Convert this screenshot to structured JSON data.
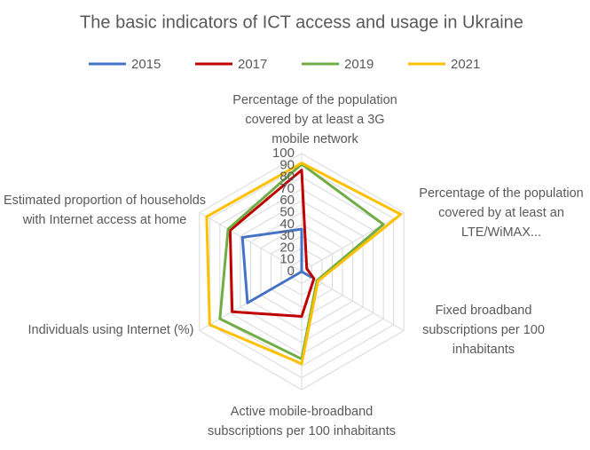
{
  "chart_data": {
    "type": "radar",
    "title": "The basic indicators of ICT access and usage in Ukraine",
    "categories": [
      "Percentage of the population covered by at least a 3G mobile network",
      "Percentage of the population covered by at least an LTE/WiMAX...",
      "Fixed broadband subscriptions per 100 inhabitants",
      "Active mobile-broadband subscriptions per 100 inhabitants",
      "Individuals using Internet (%)",
      "Estimated proportion of households with Internet access at home"
    ],
    "series": [
      {
        "name": "2015",
        "color": "#4472c4",
        "values": [
          36,
          0,
          9,
          0,
          53,
          58
        ]
      },
      {
        "name": "2017",
        "color": "#c00000",
        "values": [
          86,
          5,
          12,
          38,
          68,
          70
        ]
      },
      {
        "name": "2019",
        "color": "#70ad47",
        "values": [
          91,
          80,
          15,
          74,
          80,
          72
        ]
      },
      {
        "name": "2021",
        "color": "#ffc000",
        "values": [
          92,
          97,
          16,
          78,
          90,
          93
        ]
      }
    ],
    "rlim": [
      0,
      100
    ],
    "rticks": [
      0,
      10,
      20,
      30,
      40,
      50,
      60,
      70,
      80,
      90,
      100
    ],
    "legend": "top",
    "grid": true
  }
}
